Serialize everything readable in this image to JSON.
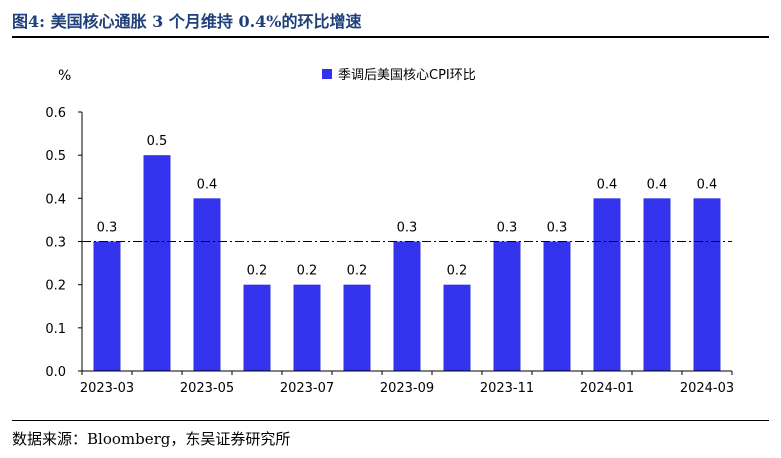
{
  "figure": {
    "title": "图4:  美国核心通胀 3 个月维持 0.4%的环比增速",
    "source": "数据来源：Bloomberg，东吴证券研究所"
  },
  "chart_data": {
    "type": "bar",
    "categories": [
      "2023-03",
      "2023-04",
      "2023-05",
      "2023-06",
      "2023-07",
      "2023-08",
      "2023-09",
      "2023-10",
      "2023-11",
      "2023-12",
      "2024-01",
      "2024-02",
      "2024-03"
    ],
    "x_tick_labels": [
      "2023-03",
      "2023-05",
      "2023-07",
      "2023-09",
      "2023-11",
      "2024-01",
      "2024-03"
    ],
    "series": [
      {
        "name": "季调后美国核心CPI环比",
        "values": [
          0.3,
          0.5,
          0.4,
          0.2,
          0.2,
          0.2,
          0.3,
          0.2,
          0.3,
          0.3,
          0.4,
          0.4,
          0.4
        ],
        "color": "#3333ee"
      }
    ],
    "ylabel": "%",
    "ylim": [
      0,
      0.6
    ],
    "yticks": [
      "0.0",
      "0.1",
      "0.2",
      "0.3",
      "0.4",
      "0.5",
      "0.6"
    ],
    "reference_line": {
      "value": 0.3,
      "style": "dash-dot"
    },
    "grid": false,
    "legend_position": "top-center"
  }
}
